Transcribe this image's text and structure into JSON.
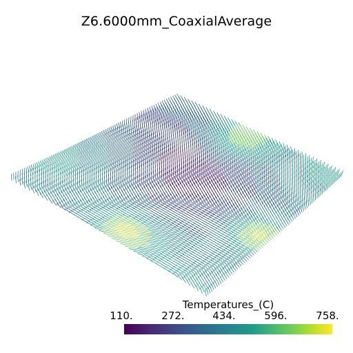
{
  "plot": {
    "title": "Z6.6000mm_CoaxialAverage",
    "field_name": "Temperatures_(C)",
    "colormap": "viridis"
  },
  "colorbar": {
    "title": "Temperatures_(C)",
    "ticks": [
      "110.",
      "272.",
      "434.",
      "596.",
      "758."
    ],
    "min": 110,
    "max": 758,
    "colors": [
      "#440154",
      "#482777",
      "#3f4a8a",
      "#31678e",
      "#26838f",
      "#1f9d8a",
      "#6cce5a",
      "#b6de2b",
      "#fde725"
    ]
  }
}
